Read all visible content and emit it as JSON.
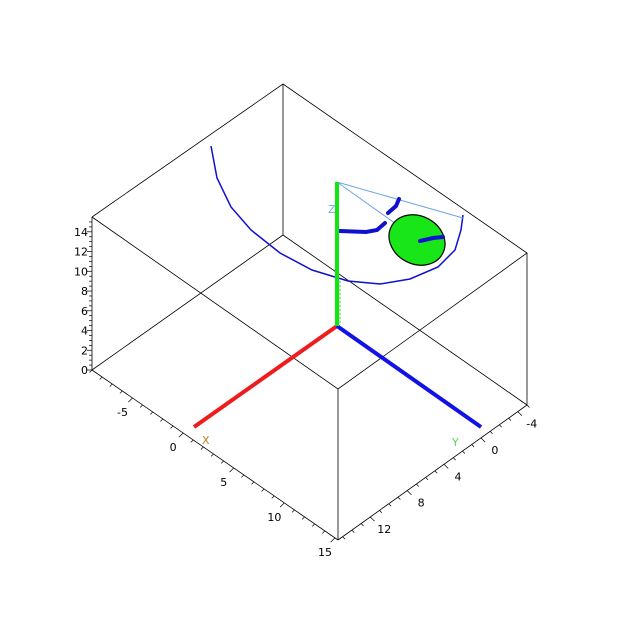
{
  "plot": {
    "type": "3d-diagram",
    "colors": {
      "background": "#ffffff",
      "box": "#000000",
      "x_axis": "#ee1c1c",
      "y_axis": "#1212e6",
      "z_axis": "#12e612",
      "curves": "#1010d0",
      "thin_lines": "#6aa6e6",
      "disk_fill": "#18e618",
      "disk_stroke": "#000000",
      "x_label": "#c8782a",
      "y_label": "#5ad45a",
      "z_label": "#7aa6ee"
    },
    "axis_letters": {
      "x": "X",
      "y": "Y",
      "z": "Z"
    },
    "z_ticks": [
      "14",
      "12",
      "10",
      "8",
      "6",
      "4",
      "2",
      "0"
    ],
    "x_ticks": [
      "-5",
      "0",
      "5",
      "10",
      "15"
    ],
    "y_ticks": [
      "-4",
      "0",
      "4",
      "8",
      "12"
    ],
    "icons": {
      "disk": "ellipse-disk",
      "arc": "curve"
    }
  }
}
